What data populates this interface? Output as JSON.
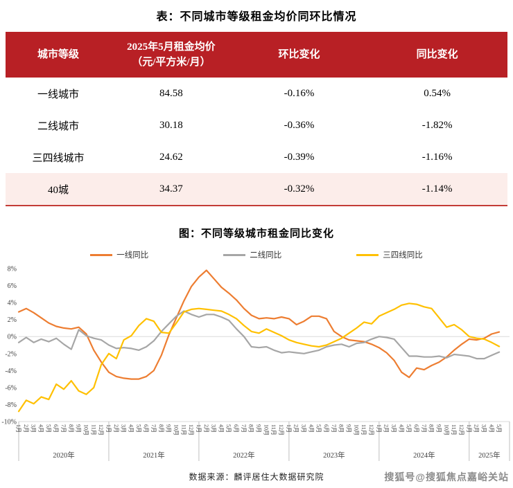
{
  "page": {
    "table_title": "表：不同城市等级租金均价同环比情况",
    "chart_title": "图：不同等级城市租金同比变化",
    "source": "数据来源：麟评居住大数据研究院",
    "watermark": "搜狐号@搜狐焦点嘉峪关站"
  },
  "table": {
    "header": {
      "col1": "城市等级",
      "col2_line1": "2025年5月租金均价",
      "col2_line2": "（元/平方米/月）",
      "col3": "环比变化",
      "col4": "同比变化"
    },
    "rows": [
      {
        "tier": "一线城市",
        "price": "84.58",
        "mom": "-0.16%",
        "yoy": "0.54%"
      },
      {
        "tier": "二线城市",
        "price": "30.18",
        "mom": "-0.36%",
        "yoy": "-1.82%"
      },
      {
        "tier": "三四线城市",
        "price": "24.62",
        "mom": "-0.39%",
        "yoy": "-1.16%"
      },
      {
        "tier": "40城",
        "price": "34.37",
        "mom": "-0.32%",
        "yoy": "-1.14%"
      }
    ],
    "colors": {
      "header_bg": "#B82025",
      "header_text": "#FFFFFF",
      "highlight_row_bg": "#FCEDEA",
      "bottom_border": "#C33C36"
    }
  },
  "chart_data": {
    "type": "line",
    "title": "图：不同等级城市租金同比变化",
    "ylabel": "",
    "xlabel": "",
    "ylim": [
      -10,
      8
    ],
    "grid": "zero-line-only",
    "legend_position": "top",
    "y_ticks": [
      {
        "label": "8%",
        "value": 8
      },
      {
        "label": "6%",
        "value": 6
      },
      {
        "label": "4%",
        "value": 4
      },
      {
        "label": "2%",
        "value": 2
      },
      {
        "label": "0%",
        "value": 0
      },
      {
        "label": "-2%",
        "value": -2
      },
      {
        "label": "-4%",
        "value": -4
      },
      {
        "label": "-6%",
        "value": -6
      },
      {
        "label": "-8%",
        "value": -8
      },
      {
        "label": "-10%",
        "value": -10
      }
    ],
    "month_labels": [
      "1月",
      "2月",
      "3月",
      "4月",
      "5月",
      "6月",
      "7月",
      "8月",
      "9月",
      "10月",
      "11月",
      "12月"
    ],
    "years": [
      {
        "label": "2020年",
        "months": 12
      },
      {
        "label": "2021年",
        "months": 12
      },
      {
        "label": "2022年",
        "months": 12
      },
      {
        "label": "2023年",
        "months": 12
      },
      {
        "label": "2024年",
        "months": 12
      },
      {
        "label": "2025年",
        "months": 5
      }
    ],
    "axis_color": "#D9D9D9",
    "separator_color": "#BFBFBF",
    "label_color": "#404040",
    "series": [
      {
        "name": "一线同比",
        "color": "#ED7D31",
        "values": [
          2.9,
          3.3,
          2.8,
          2.2,
          1.6,
          1.2,
          1.0,
          0.9,
          1.1,
          0.3,
          -1.6,
          -3.0,
          -4.2,
          -4.7,
          -4.9,
          -5.0,
          -5.0,
          -4.7,
          -4.0,
          -2.2,
          0.2,
          2.2,
          4.2,
          5.9,
          7.0,
          7.8,
          6.8,
          5.8,
          5.1,
          4.3,
          3.3,
          2.5,
          2.1,
          2.2,
          2.1,
          2.3,
          2.1,
          1.4,
          1.8,
          2.4,
          2.4,
          2.1,
          0.6,
          0.0,
          -0.4,
          -0.5,
          -0.6,
          -0.9,
          -1.3,
          -1.9,
          -2.8,
          -4.2,
          -4.8,
          -3.7,
          -3.9,
          -3.4,
          -3.0,
          -2.4,
          -1.6,
          -0.9,
          -0.3,
          -0.4,
          -0.2,
          0.3,
          0.54
        ]
      },
      {
        "name": "二线同比",
        "color": "#A6A6A6",
        "values": [
          -0.7,
          -0.1,
          -0.7,
          -0.3,
          -0.6,
          -0.2,
          -0.9,
          -1.5,
          0.8,
          0.1,
          -0.2,
          -0.4,
          -1.0,
          -1.4,
          -1.3,
          -1.4,
          -1.6,
          -1.2,
          -0.5,
          0.6,
          1.5,
          2.4,
          3.0,
          2.6,
          2.3,
          2.6,
          2.6,
          2.3,
          1.9,
          0.9,
          0.0,
          -1.2,
          -1.3,
          -1.2,
          -1.6,
          -1.9,
          -1.8,
          -1.9,
          -2.0,
          -1.8,
          -1.6,
          -1.2,
          -1.0,
          -0.9,
          -1.2,
          -0.8,
          -0.7,
          -0.3,
          0.0,
          -0.1,
          -0.3,
          -1.3,
          -2.3,
          -2.3,
          -2.4,
          -2.4,
          -2.3,
          -2.5,
          -2.1,
          -2.2,
          -2.3,
          -2.6,
          -2.6,
          -2.2,
          -1.82
        ]
      },
      {
        "name": "三四线同比",
        "color": "#FFC000",
        "values": [
          -8.8,
          -7.5,
          -7.9,
          -7.1,
          -7.4,
          -5.6,
          -6.2,
          -5.2,
          -6.4,
          -6.8,
          -6.0,
          -3.3,
          -2.0,
          -2.6,
          -0.4,
          0.1,
          1.3,
          2.1,
          1.8,
          0.5,
          0.4,
          1.6,
          2.9,
          3.2,
          3.3,
          3.2,
          3.1,
          3.0,
          2.6,
          2.1,
          1.3,
          0.6,
          0.4,
          0.9,
          0.5,
          0.1,
          -0.4,
          -0.7,
          -0.9,
          -1.1,
          -1.2,
          -1.0,
          -0.6,
          -0.2,
          0.4,
          1.0,
          1.7,
          1.5,
          2.4,
          2.8,
          3.2,
          3.7,
          3.9,
          3.8,
          3.5,
          3.3,
          2.2,
          1.1,
          1.4,
          0.8,
          0.0,
          -0.2,
          -0.3,
          -0.7,
          -1.16
        ]
      }
    ]
  }
}
